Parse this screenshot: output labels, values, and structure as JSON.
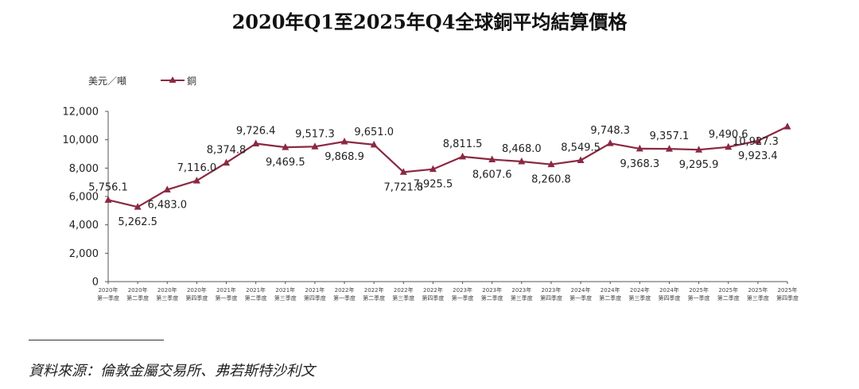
{
  "title": "2020年Q1至2025年Q4全球銅平均結算價格",
  "source": "資料來源：倫敦金屬交易所、弗若斯特沙利文",
  "colors": {
    "series": "#8b2942",
    "axis": "#555555"
  },
  "chart_data": {
    "type": "line",
    "title": "2020年Q1至2025年Q4全球銅平均結算價格",
    "unit_label": "美元／噸",
    "ylim": [
      0,
      12000
    ],
    "yticks": [
      "0",
      "2,000",
      "4,000",
      "6,000",
      "8,000",
      "10,000",
      "12,000"
    ],
    "grid": false,
    "legend": "top-left",
    "categories": [
      [
        "2020年",
        "第一季度"
      ],
      [
        "2020年",
        "第二季度"
      ],
      [
        "2020年",
        "第三季度"
      ],
      [
        "2020年",
        "第四季度"
      ],
      [
        "2021年",
        "第一季度"
      ],
      [
        "2021年",
        "第二季度"
      ],
      [
        "2021年",
        "第三季度"
      ],
      [
        "2021年",
        "第四季度"
      ],
      [
        "2022年",
        "第一季度"
      ],
      [
        "2022年",
        "第二季度"
      ],
      [
        "2022年",
        "第三季度"
      ],
      [
        "2022年",
        "第四季度"
      ],
      [
        "2023年",
        "第一季度"
      ],
      [
        "2023年",
        "第二季度"
      ],
      [
        "2023年",
        "第三季度"
      ],
      [
        "2023年",
        "第四季度"
      ],
      [
        "2024年",
        "第一季度"
      ],
      [
        "2024年",
        "第二季度"
      ],
      [
        "2024年",
        "第三季度"
      ],
      [
        "2024年",
        "第四季度"
      ],
      [
        "2025年",
        "第一季度"
      ],
      [
        "2025年",
        "第二季度"
      ],
      [
        "2025年",
        "第三季度"
      ],
      [
        "2025年",
        "第四季度"
      ]
    ],
    "series": [
      {
        "name": "銅",
        "values": [
          5756.1,
          5262.5,
          6483.0,
          7116.0,
          8374.8,
          9726.4,
          9469.5,
          9517.3,
          9868.9,
          9651.0,
          7721.8,
          7925.5,
          8811.5,
          8607.6,
          8468.0,
          8260.8,
          8549.5,
          9748.3,
          9368.3,
          9357.1,
          9295.9,
          9490.6,
          9923.4,
          10927.3
        ],
        "labels": [
          "5,756.1",
          "5,262.5",
          "6,483.0",
          "7,116.0",
          "8,374.8",
          "9,726.4",
          "9,469.5",
          "9,517.3",
          "9,868.9",
          "9,651.0",
          "7,721.8",
          "7,925.5",
          "8,811.5",
          "8,607.6",
          "8,468.0",
          "8,260.8",
          "8,549.5",
          "9,748.3",
          "9,368.3",
          "9,357.1",
          "9,295.9",
          "9,490.6",
          "9,923.4",
          "10,927.3"
        ],
        "label_position": [
          "above",
          "below",
          "below",
          "above",
          "above",
          "above",
          "below",
          "above",
          "below",
          "above",
          "below",
          "below",
          "above",
          "below",
          "above",
          "below",
          "above",
          "above",
          "below",
          "above",
          "below",
          "above",
          "below",
          "below"
        ]
      }
    ]
  }
}
